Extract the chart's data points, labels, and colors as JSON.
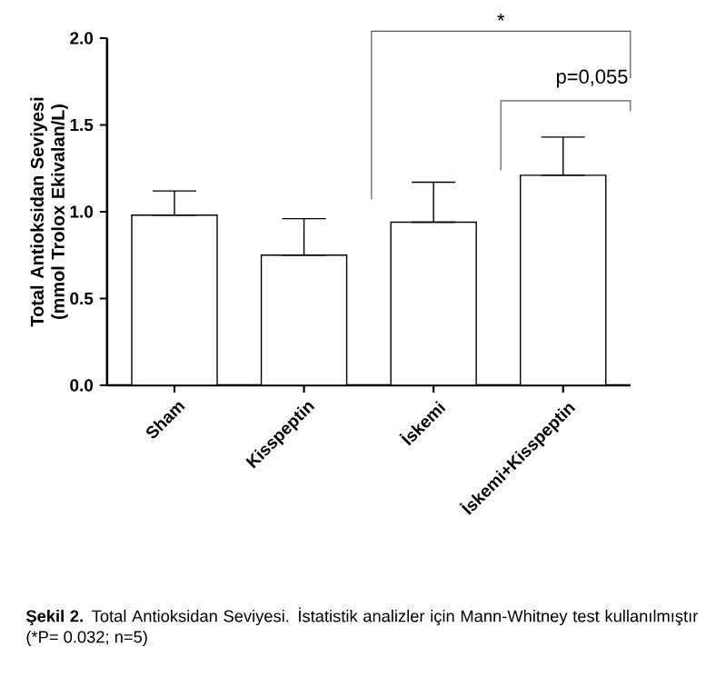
{
  "chart_data": {
    "type": "bar",
    "ylabel": "Total Antioksidan Seviyesi (mmol Trolox Ekivalan/L)",
    "categories": [
      "Sham",
      "Kisspeptin",
      "İskemi",
      "İskemi+Kisspeptin"
    ],
    "values": [
      0.98,
      0.75,
      0.94,
      1.21
    ],
    "errors": [
      [
        0.98,
        1.12
      ],
      [
        0.75,
        0.96
      ],
      [
        0.94,
        1.17
      ],
      [
        1.21,
        1.43
      ]
    ],
    "color": "#ffffff",
    "ylim": [
      0,
      2.0
    ],
    "yticks": [
      {
        "value": 0,
        "label": "0.0"
      },
      {
        "value": 0.5,
        "label": "0.5"
      },
      {
        "value": 1.0,
        "label": "1.0"
      },
      {
        "value": 1.5,
        "label": "1.5"
      },
      {
        "value": 2.0,
        "label": "2.0"
      }
    ],
    "grid": false,
    "annotations": [
      "*",
      "p=0,055",
      "**Şekil 2.** Total Antioksidan Seviyesi. İstatistik analizler için Mann-Whitney test kullanılmıştır (*P= 0.032; n=5)"
    ]
  }
}
